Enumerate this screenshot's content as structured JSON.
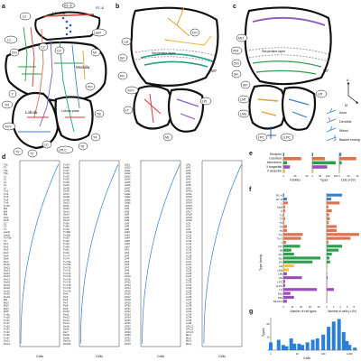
{
  "panels": {
    "a": {
      "letter": "a",
      "region_labels": [
        "Lamina",
        "Medulla",
        "Lobula",
        "Lobula plate"
      ],
      "cell_labels": [
        "R1–6",
        "R7–8",
        "L1",
        "L2",
        "Lawf",
        "Tm",
        "TmY",
        "T4",
        "T5",
        "Tlp",
        "Y",
        "LC",
        "LPLC",
        "T2",
        "T3",
        "C2",
        "C3",
        "Mi",
        "Dm",
        "Pm"
      ]
    },
    "b": {
      "letter": "b",
      "layer_label": "Serpentine layer",
      "m7_label": "M7",
      "cell_labels": [
        "Lat",
        "Dm",
        "Sm",
        "Pm",
        "TmY",
        "LT",
        "LPi",
        "ML"
      ]
    },
    "c": {
      "letter": "c",
      "layer_label": "Serpentine layer",
      "m7_label": "M7",
      "cell_labels": [
        "MLt",
        "PDt",
        "Dm",
        "Sm",
        "Am",
        "LMt",
        "LMa",
        "LPt",
        "LPC",
        "LLPC"
      ],
      "compass": [
        "A",
        "M"
      ],
      "legend": [
        "Axon",
        "Dendrite",
        "Mixed",
        "Basket ending"
      ]
    },
    "d": {
      "letter": "d",
      "x_label": "Cells",
      "columns": [
        [
          "T2a",
          "T3",
          "T4a",
          "T5a",
          "L1",
          "L2",
          "L3",
          "L4",
          "L5",
          "Tm1",
          "Tm2",
          "Tm3",
          "Tm4",
          "Tm9",
          "Tm20",
          "Mi1",
          "Mi4",
          "Mi9",
          "Dm2",
          "Dm8",
          "C2",
          "C3",
          "T1",
          "Lawf1",
          "Lawf2",
          "TmY5a",
          "Y3",
          "Pm1",
          "Pm2",
          "Pm3",
          "Dm3",
          "Dm4",
          "Dm6",
          "Dm9",
          "Dm10",
          "Dm12",
          "Dm13",
          "Dm15",
          "Dm16",
          "Dm17",
          "Dm18",
          "Dm19",
          "Dm20",
          "Sm01",
          "Sm02",
          "Sm03",
          "Mi2",
          "Mi10",
          "Mi13",
          "Mi14",
          "Mi15",
          "Tm5a",
          "Tm16",
          "Tm21",
          "Tm27",
          "Tm29",
          "Tm31",
          "Tm32",
          "Tm36",
          "Tm37",
          "Dm11",
          "Dm14"
        ],
        [
          "Tm14",
          "Dm8b",
          "Tm37",
          "Tm40",
          "Tm33",
          "Tm35",
          "Tm39",
          "Sm04",
          "Sm05",
          "Sm06",
          "Sm07",
          "Sm08",
          "Sm09",
          "Sm10",
          "Sm11",
          "Sm12",
          "Sm13",
          "Sm14",
          "Sm15",
          "Sm16",
          "Tm3b",
          "Tm8a",
          "Tm12",
          "Tm16b",
          "Tm20b",
          "Tm25",
          "Tm30",
          "Tm34",
          "Tm38",
          "Tm41",
          "Tm42",
          "TmY3",
          "TmY4",
          "TmY9a",
          "TmY9b",
          "TmY10",
          "TmY11",
          "TmY13",
          "TmY14",
          "TmY15",
          "TmY16",
          "TmY18",
          "TmY19",
          "TmY20",
          "Pm4",
          "Pm5",
          "Pm6",
          "Pm7",
          "Pm8",
          "Pm9",
          "Pm10",
          "Pm11",
          "Pm12",
          "Pm13",
          "Pm14",
          "Dm3b",
          "Dm3c",
          "Dm7",
          "Dm8a",
          "Dm9b",
          "Dm11b",
          "Dm20b"
        ],
        [
          "LMt1",
          "LM10",
          "LM11",
          "LM12",
          "LM13",
          "LM14",
          "LM15",
          "LM16",
          "LM17",
          "LMa1",
          "LMa2",
          "LMa3",
          "LMa4",
          "LMa5",
          "LM1",
          "LM2",
          "LM3",
          "LM4",
          "LM5",
          "LM6",
          "LM7",
          "LM8",
          "LM9",
          "LMt2",
          "LMt3",
          "LMt4",
          "LMt5",
          "LMt6",
          "LMt7",
          "LPi1",
          "LPi2",
          "LPi3",
          "LPi4",
          "LPi5",
          "LPi6",
          "LPi7",
          "LPi8",
          "LPi9",
          "LPi10",
          "LPi11",
          "LPi12",
          "LPi13",
          "LPi14",
          "LPi15",
          "LPi16",
          "LPi17",
          "LPi18",
          "LPi19",
          "LPi20",
          "LPi21",
          "LPi22",
          "LPi23",
          "LPi24",
          "LPi25",
          "LPi26",
          "LPi27",
          "LPi28",
          "LPi29",
          "LPi30",
          "LPi31",
          "LPi32",
          "LPi33"
        ],
        [
          "LPt1",
          "LPt2",
          "LPt3",
          "LPt4",
          "LPt5",
          "LPt6",
          "LPt7",
          "LPt8",
          "LPt9",
          "LPt10",
          "LPt11",
          "LPt12",
          "LPt13",
          "LPt14",
          "LPt15",
          "LPt16",
          "LPt17",
          "LPt18",
          "LPt19",
          "LPt20",
          "LC4",
          "LC6",
          "LC9",
          "LC10",
          "LC11",
          "LC12",
          "LC13",
          "LC14",
          "LC15",
          "LC16",
          "LC17",
          "LC18",
          "LC20",
          "LC21",
          "LC22",
          "LC24",
          "LC25",
          "LC26",
          "LC27",
          "LC28",
          "LC29",
          "LC31",
          "LC33",
          "LC34",
          "LC35",
          "LC36",
          "LC37",
          "LC38",
          "LC39",
          "LC40",
          "LC41",
          "LC43",
          "LC44",
          "LC45",
          "LC46",
          "LPLC1",
          "LPLC2",
          "LPLC4",
          "MLt1",
          "MLt2",
          "MLt3",
          "MLt4"
        ]
      ]
    },
    "e": {
      "letter": "e",
      "rows": [
        "Receptor",
        "Columnar",
        "Interneuron",
        "X tangential",
        "X amacrine"
      ],
      "x_labels": [
        "Families",
        "Types",
        "Cells (×10³)"
      ],
      "ticks": [
        [
          "0",
          "25",
          "50"
        ],
        [
          "0",
          "50",
          "100",
          "150"
        ],
        [
          "0",
          "20",
          "40"
        ]
      ]
    },
    "f": {
      "letter": "f",
      "y_label": "Type family",
      "rows": [
        "R1–6",
        "R7–8",
        "L",
        "Lawf",
        "C",
        "T1",
        "T2",
        "T3",
        "T4",
        "T5",
        "Tm",
        "TmY",
        "Y",
        "Dm",
        "Mi",
        "Pm",
        "Sm",
        "LPi",
        "LM",
        "LMa",
        "LMt",
        "LPt",
        "LPC",
        "LLPC",
        "LC",
        "MLt",
        "PDt",
        "MLLPLt"
      ],
      "x_labels": [
        "Number of cell types",
        "Number of cells (×10³)"
      ],
      "ticks": [
        [
          "0",
          "10",
          "20",
          "30",
          "40"
        ],
        [
          "0",
          "2",
          "4",
          "6",
          "8"
        ]
      ]
    },
    "g": {
      "letter": "g",
      "y_label": "Types",
      "x_label": "Cells",
      "x_ticks": [
        "1",
        "10",
        "100",
        "1,000"
      ],
      "y_ticks": [
        "0",
        "10",
        "20"
      ]
    }
  },
  "colors": {
    "receptor": "#3b7fc4",
    "columnar": "#d9744e",
    "interneuron": "#2e9d4e",
    "x_tangential": "#9a4fb8",
    "x_amacrine": "#f2c230",
    "hist": "#2b7fd6",
    "medulla": "#21a08c",
    "lobula_plate": "#8a5bc0"
  },
  "chart_data": [
    {
      "type": "bar",
      "title": "",
      "categories": [
        "Receptor",
        "Columnar",
        "Interneuron",
        "X tangential",
        "X amacrine"
      ],
      "series": [
        {
          "name": "Families",
          "values": [
            2,
            38,
            8,
            14,
            4
          ]
        },
        {
          "name": "Types",
          "values": [
            6,
            80,
            150,
            95,
            8
          ]
        },
        {
          "name": "Cells (×10³)",
          "values": [
            5,
            42,
            6,
            1,
            0.5
          ]
        }
      ]
    },
    {
      "type": "bar",
      "categories": [
        "R1–6",
        "R7–8",
        "L",
        "Lawf",
        "C",
        "T1",
        "T2",
        "T3",
        "T4",
        "T5",
        "Tm",
        "TmY",
        "Y",
        "Dm",
        "Mi",
        "Pm",
        "Sm",
        "LPi",
        "LM",
        "LMa",
        "LMt",
        "LPt",
        "LPC",
        "LLPC",
        "LC",
        "MLt",
        "PDt",
        "MLLPLt"
      ],
      "series": [
        {
          "name": "Number of cell types",
          "values": [
            1,
            4,
            5,
            2,
            2,
            1,
            2,
            1,
            4,
            4,
            22,
            20,
            3,
            19,
            9,
            12,
            42,
            33,
            12,
            6,
            4,
            21,
            2,
            2,
            38,
            8,
            12,
            4
          ]
        },
        {
          "name": "Number of cells (×10³)",
          "values": [
            4.5,
            1.3,
            3.8,
            0.5,
            1.5,
            0.7,
            0.9,
            0.6,
            2.9,
            2.9,
            9.5,
            7.0,
            0.5,
            4.5,
            3.5,
            1.5,
            0.8,
            1.0,
            0.3,
            0.1,
            0.1,
            0.3,
            0.1,
            0.1,
            2.1,
            0.1,
            0.1,
            0.1
          ]
        }
      ]
    },
    {
      "type": "bar",
      "x_scale": "log",
      "xlabel": "Cells",
      "ylabel": "Types",
      "x": [
        1,
        2,
        3,
        4,
        6,
        8,
        12,
        16,
        25,
        40,
        60,
        100,
        160,
        250,
        400,
        600,
        800,
        1000,
        1600
      ],
      "values": [
        6,
        8,
        4,
        3,
        9,
        5,
        5,
        4,
        6,
        8,
        9,
        12,
        18,
        22,
        24,
        14,
        7,
        4,
        2
      ],
      "ylim": [
        0,
        25
      ]
    }
  ]
}
